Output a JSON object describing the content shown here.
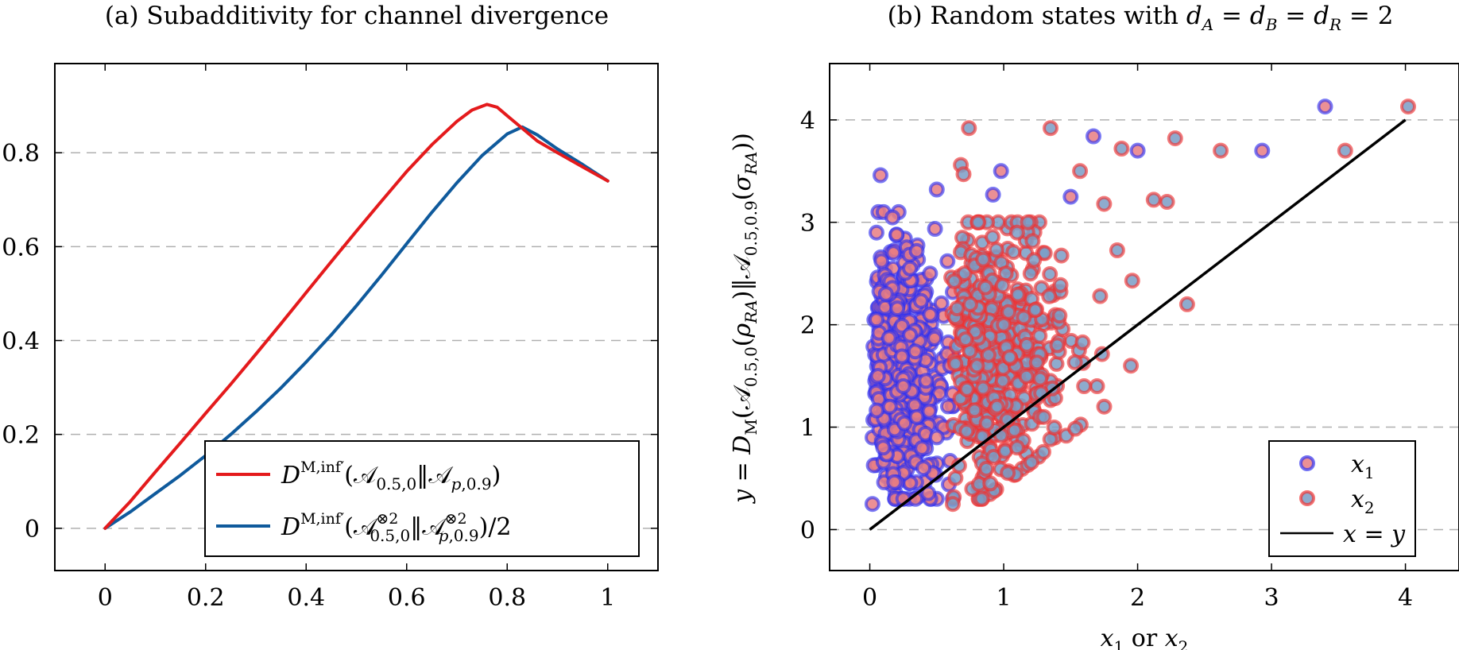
{
  "chart_data": [
    {
      "type": "line",
      "title": "(a) Subadditivity for channel divergence",
      "xlabel": "",
      "ylabel": "",
      "xlim": [
        -0.1,
        1.1
      ],
      "ylim": [
        -0.09,
        0.99
      ],
      "xticks": [
        0,
        0.2,
        0.4,
        0.6,
        0.8,
        1
      ],
      "xtick_labels": [
        "0",
        "0.2",
        "0.4",
        "0.6",
        "0.8",
        "1"
      ],
      "yticks": [
        0,
        0.2,
        0.4,
        0.6,
        0.8
      ],
      "ytick_labels": [
        "0",
        "0.2",
        "0.4",
        "0.6",
        "0.8"
      ],
      "grid": "horizontal dashed",
      "legend_position": "bottom-right",
      "series": [
        {
          "name": "D^{M,inf′}(𝒜_{0.5,0}‖𝒜_{p,0.9})",
          "color": "#e41a1c",
          "x": [
            0,
            0.05,
            0.1,
            0.15,
            0.2,
            0.25,
            0.3,
            0.35,
            0.4,
            0.45,
            0.5,
            0.55,
            0.6,
            0.65,
            0.7,
            0.73,
            0.76,
            0.78,
            0.8,
            0.83,
            0.86,
            0.9,
            0.95,
            1.0
          ],
          "y": [
            0,
            0.057,
            0.12,
            0.182,
            0.245,
            0.307,
            0.371,
            0.436,
            0.502,
            0.568,
            0.633,
            0.697,
            0.76,
            0.817,
            0.867,
            0.891,
            0.903,
            0.897,
            0.879,
            0.852,
            0.825,
            0.8,
            0.77,
            0.74
          ]
        },
        {
          "name": "D^{M,inf′}(𝒜^{⊗2}_{0.5,0}‖𝒜^{⊗2}_{p,0.9})/2",
          "color": "#0f5a9c",
          "x": [
            0,
            0.05,
            0.1,
            0.15,
            0.2,
            0.25,
            0.3,
            0.35,
            0.4,
            0.45,
            0.5,
            0.55,
            0.6,
            0.65,
            0.7,
            0.75,
            0.8,
            0.83,
            0.86,
            0.9,
            0.95,
            1.0
          ],
          "y": [
            0,
            0.035,
            0.074,
            0.113,
            0.155,
            0.2,
            0.248,
            0.299,
            0.354,
            0.412,
            0.474,
            0.539,
            0.606,
            0.673,
            0.736,
            0.794,
            0.84,
            0.855,
            0.838,
            0.808,
            0.775,
            0.74
          ]
        }
      ]
    },
    {
      "type": "scatter",
      "title": "(b) Random states with d_A = d_B = d_R = 2",
      "xlabel": "x₁ or x₂",
      "ylabel": "y = D_M(𝒜_{0.5,0}(ρ_{RA})‖𝒜_{0.5,0.9}(σ_{RA}))",
      "xlim": [
        -0.3,
        4.4
      ],
      "ylim": [
        -0.4,
        4.55
      ],
      "xticks": [
        0,
        1,
        2,
        3,
        4
      ],
      "xtick_labels": [
        "0",
        "1",
        "2",
        "3",
        "4"
      ],
      "yticks": [
        0,
        1,
        2,
        3,
        4
      ],
      "ytick_labels": [
        "0",
        "1",
        "2",
        "3",
        "4"
      ],
      "grid": "horizontal dashed",
      "legend_position": "bottom-right",
      "series": [
        {
          "name": "x₁",
          "edge_color": "#3333ee",
          "fill_color": "#e87c82",
          "description": "dense band with x from 0 to about 0.6, y from 0.25 to 3.9; sparse points up to x=3.4",
          "points": [
            [
              0.02,
              0.25
            ],
            [
              0.08,
              3.46
            ],
            [
              0.25,
              0.3
            ],
            [
              0.05,
              2.9
            ],
            [
              0.2,
              2.88
            ],
            [
              0.35,
              2.72
            ],
            [
              0.3,
              2.55
            ],
            [
              0.45,
              2.5
            ],
            [
              0.5,
              3.32
            ],
            [
              0.1,
              0.8
            ],
            [
              0.15,
              1.2
            ],
            [
              0.4,
              0.6
            ],
            [
              0.55,
              1.0
            ],
            [
              0.6,
              1.6
            ],
            [
              0.06,
              1.5
            ],
            [
              0.3,
              1.9
            ],
            [
              0.12,
              2.3
            ],
            [
              0.45,
              2.1
            ],
            [
              0.25,
              1.4
            ],
            [
              0.5,
              0.9
            ],
            [
              2.93,
              3.7
            ],
            [
              3.4,
              4.13
            ],
            [
              0.98,
              3.5
            ],
            [
              0.92,
              3.27
            ],
            [
              1.67,
              3.84
            ],
            [
              2.0,
              3.7
            ],
            [
              1.5,
              3.25
            ],
            [
              0.35,
              1.1
            ],
            [
              0.05,
              2.05
            ],
            [
              0.58,
              2.62
            ]
          ]
        },
        {
          "name": "x₂",
          "edge_color": "#ee3333",
          "fill_color": "#7a9cc6",
          "description": "dense band with x from about 0.6 to 1.8, y from 0.25 to 3.9; sparse points up to x=4",
          "points": [
            [
              0.62,
              0.25
            ],
            [
              0.74,
              3.92
            ],
            [
              0.68,
              3.56
            ],
            [
              0.7,
              3.47
            ],
            [
              1.18,
              3.0
            ],
            [
              1.35,
              3.92
            ],
            [
              1.57,
              3.5
            ],
            [
              1.88,
              3.72
            ],
            [
              2.28,
              3.82
            ],
            [
              2.62,
              3.7
            ],
            [
              3.55,
              3.7
            ],
            [
              4.02,
              4.13
            ],
            [
              2.22,
              3.2
            ],
            [
              2.12,
              3.22
            ],
            [
              2.37,
              2.2
            ],
            [
              1.95,
              1.6
            ],
            [
              1.96,
              2.43
            ],
            [
              1.75,
              3.18
            ],
            [
              1.72,
              2.28
            ],
            [
              1.6,
              1.4
            ],
            [
              1.3,
              1.1
            ],
            [
              1.1,
              0.8
            ],
            [
              0.9,
              0.45
            ],
            [
              0.8,
              1.6
            ],
            [
              1.0,
              2.0
            ],
            [
              1.2,
              2.5
            ],
            [
              1.4,
              1.8
            ],
            [
              0.95,
              1.2
            ],
            [
              1.1,
              2.9
            ],
            [
              0.75,
              2.2
            ]
          ]
        },
        {
          "name": "x = y",
          "type": "line",
          "color": "#000000",
          "x": [
            0,
            4
          ],
          "y": [
            0,
            4
          ]
        }
      ]
    }
  ]
}
